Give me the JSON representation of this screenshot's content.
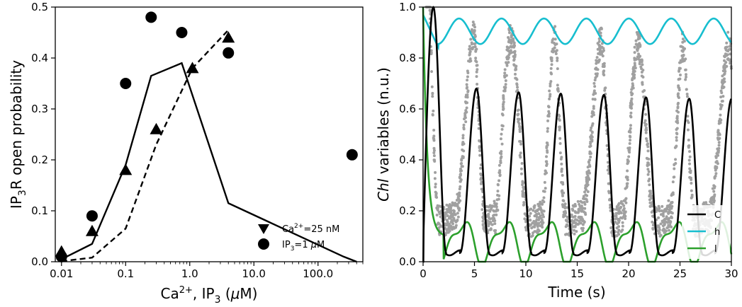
{
  "chart_data": [
    {
      "type": "scatter",
      "title": "",
      "ylabel_parts": {
        "base": "IP",
        "sub": "3",
        "rest": "R open probability"
      },
      "xlabel_parts": {
        "ca": "Ca",
        "ca_sup": "2+",
        "ip": ", IP",
        "ip_sub": "3",
        "unit_open": " (",
        "mu": "μ",
        "unit_close": "M)"
      },
      "x_scale": "log",
      "xlim": [
        0.008,
        500
      ],
      "ylim": [
        0,
        0.5
      ],
      "x_ticks": [
        0.01,
        0.1,
        1,
        10,
        100
      ],
      "x_tick_labels": [
        "0.01",
        "0.1",
        "1.0",
        "10.0",
        "100.0"
      ],
      "y_ticks": [
        0,
        0.1,
        0.2,
        0.3,
        0.4,
        0.5
      ],
      "y_tick_labels": [
        "0.0",
        "0.1",
        "0.2",
        "0.3",
        "0.4",
        "0.5"
      ],
      "legend_position": "lower-right",
      "series": [
        {
          "legend_label": {
            "pre": "Ca",
            "sup": "2+",
            "post": "=25 nM"
          },
          "marker": "triangle",
          "x": [
            0.01,
            0.03,
            0.1,
            0.3,
            1.1,
            4.0
          ],
          "y": [
            0.02,
            0.06,
            0.18,
            0.26,
            0.38,
            0.44
          ]
        },
        {
          "legend_label": {
            "pre": "IP",
            "sub": "3",
            "post": "=1 ",
            "mu": "μ",
            "post2": "M"
          },
          "marker": "circle",
          "x": [
            0.01,
            0.03,
            0.1,
            0.25,
            0.75,
            4.0,
            340
          ],
          "y": [
            0.01,
            0.09,
            0.35,
            0.48,
            0.45,
            0.41,
            0.21
          ]
        },
        {
          "style": "solid-line",
          "x": [
            0.01,
            0.03,
            0.1,
            0.25,
            0.75,
            4.0,
            250,
            400
          ],
          "y": [
            0.005,
            0.035,
            0.19,
            0.365,
            0.39,
            0.115,
            0.01,
            0.0
          ]
        },
        {
          "style": "dashed-line",
          "x": [
            0.01,
            0.03,
            0.1,
            0.3,
            1.1,
            4.0
          ],
          "y": [
            0.001,
            0.008,
            0.065,
            0.23,
            0.38,
            0.455
          ]
        }
      ]
    },
    {
      "type": "line",
      "title": "",
      "ylabel_parts": {
        "pre": "",
        "italic": "Chl",
        "post": " variables (n.u.)"
      },
      "xlabel": "Time (s)",
      "xlim": [
        0,
        30
      ],
      "ylim": [
        0,
        1.0
      ],
      "x_ticks": [
        0,
        5,
        10,
        15,
        20,
        25,
        30
      ],
      "x_tick_labels": [
        "0",
        "5",
        "10",
        "15",
        "20",
        "25",
        "30"
      ],
      "y_ticks": [
        0,
        0.2,
        0.4,
        0.6,
        0.8,
        1.0
      ],
      "y_tick_labels": [
        "0.0",
        "0.2",
        "0.4",
        "0.6",
        "0.8",
        "1.0"
      ],
      "legend_position": "lower-right",
      "series": [
        {
          "name": "C",
          "color": "#000000"
        },
        {
          "name": "h",
          "color": "#17becf"
        },
        {
          "name": "l",
          "color": "#2ca02c"
        }
      ],
      "period_s": 4.13,
      "C_peak_times": [
        1.0,
        5.2,
        9.3,
        13.4,
        17.6,
        21.7,
        25.9
      ],
      "C_peak_values": [
        1.0,
        0.68,
        0.665,
        0.66,
        0.655,
        0.645,
        0.64
      ],
      "C_trough": 0.035,
      "C_end_value": 0.57,
      "h_range": [
        0.84,
        0.96
      ],
      "l_range": [
        0.0,
        0.16
      ],
      "experimental_points_color": "#a0a0a0"
    }
  ]
}
